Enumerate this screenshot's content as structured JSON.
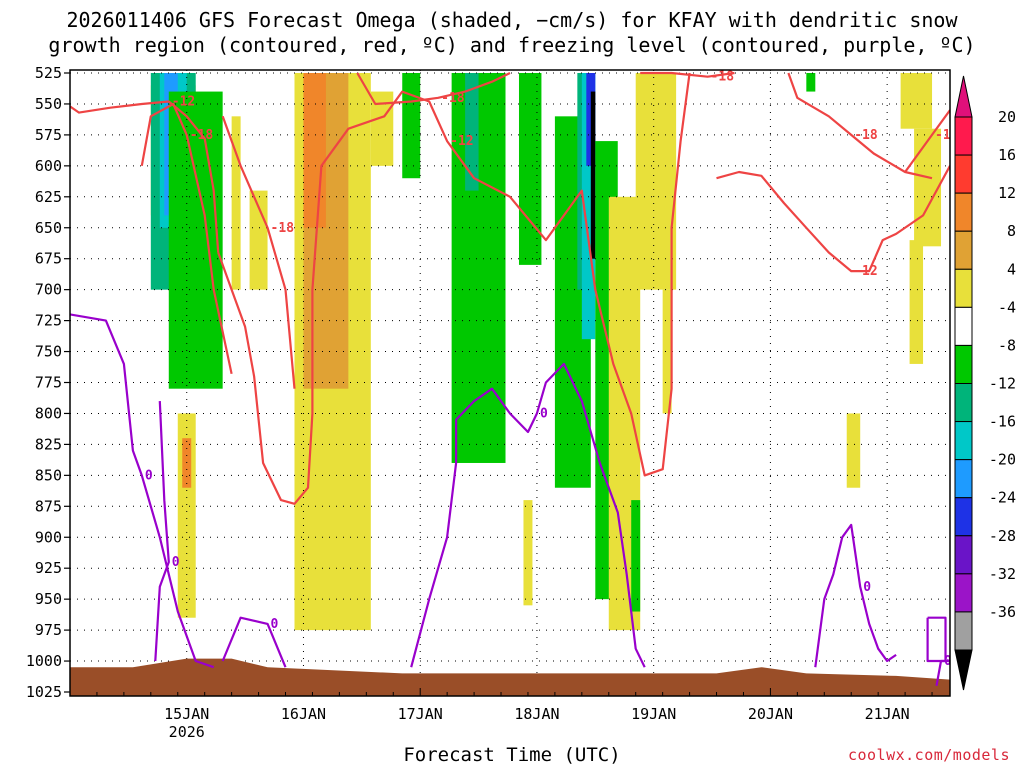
{
  "chart_data": {
    "type": "heatmap",
    "title_line1": "2026011406 GFS Forecast Omega (shaded, −cm/s) for KFAY with dendritic snow",
    "title_line2": "growth region (contoured, red, ºC) and freezing level (contoured, purple, ºC)",
    "xlabel": "Forecast Time (UTC)",
    "credit": "coolwx.com/models",
    "x_range_hours": [
      -14,
      182
    ],
    "y_levels": [
      525,
      550,
      575,
      600,
      625,
      650,
      675,
      700,
      725,
      750,
      775,
      800,
      825,
      850,
      875,
      900,
      925,
      950,
      975,
      1000,
      1025
    ],
    "y_tick_labels": [
      "525",
      "550",
      "575",
      "600",
      "625",
      "650",
      "675",
      "700",
      "725",
      "750",
      "775",
      "800",
      "825",
      "850",
      "875",
      "900",
      "925",
      "950",
      "975",
      "1000",
      "1025"
    ],
    "x_ticks": [
      {
        "hours": 12,
        "label": "15JAN",
        "sub": "2026"
      },
      {
        "hours": 38,
        "label": "16JAN"
      },
      {
        "hours": 64,
        "label": "17JAN"
      },
      {
        "hours": 90,
        "label": "18JAN"
      },
      {
        "hours": 116,
        "label": "19JAN"
      },
      {
        "hours": 142,
        "label": "20JAN"
      },
      {
        "hours": 168,
        "label": "21JAN"
      }
    ],
    "colorbar": {
      "labels": [
        "20",
        "16",
        "12",
        "8",
        "4",
        "-4",
        "-8",
        "-12",
        "-16",
        "-20",
        "-24",
        "-28",
        "-32",
        "-36"
      ],
      "colors": [
        "#ff1a4d",
        "#ff3b2f",
        "#f0862a",
        "#e0a234",
        "#e8e03a",
        "#ffffff",
        "#00c800",
        "#00b47a",
        "#00c8c8",
        "#1e9bff",
        "#1e32e6",
        "#6a14c8",
        "#9b14c8",
        "#a0a0a0"
      ],
      "top_arrow": "#e0107a",
      "bottom_arrow": "#000000"
    },
    "omega_shading": [
      {
        "color": "#e8e03a",
        "x": [
          4,
          14
        ],
        "p": [
          535,
          640
        ]
      },
      {
        "color": "#00b47a",
        "x": [
          4,
          14
        ],
        "p": [
          525,
          700
        ]
      },
      {
        "color": "#00c8c8",
        "x": [
          6,
          12
        ],
        "p": [
          525,
          650
        ]
      },
      {
        "color": "#1e9bff",
        "x": [
          7,
          10
        ],
        "p": [
          525,
          640
        ]
      },
      {
        "color": "#00c800",
        "x": [
          8,
          20
        ],
        "p": [
          540,
          780
        ]
      },
      {
        "color": "#e8e03a",
        "x": [
          10,
          14
        ],
        "p": [
          800,
          965
        ]
      },
      {
        "color": "#f0862a",
        "x": [
          11,
          13
        ],
        "p": [
          820,
          860
        ]
      },
      {
        "color": "#00c800",
        "x": [
          14,
          17
        ],
        "p": [
          550,
          740
        ]
      },
      {
        "color": "#e8e03a",
        "x": [
          22,
          24
        ],
        "p": [
          560,
          700
        ]
      },
      {
        "color": "#e8e03a",
        "x": [
          26,
          30
        ],
        "p": [
          620,
          700
        ]
      },
      {
        "color": "#e8e03a",
        "x": [
          36,
          53
        ],
        "p": [
          525,
          975
        ]
      },
      {
        "color": "#e0a234",
        "x": [
          38,
          48
        ],
        "p": [
          525,
          780
        ]
      },
      {
        "color": "#f0862a",
        "x": [
          38,
          43
        ],
        "p": [
          525,
          650
        ]
      },
      {
        "color": "#e8e03a",
        "x": [
          53,
          58
        ],
        "p": [
          540,
          600
        ]
      },
      {
        "color": "#00c800",
        "x": [
          60,
          64
        ],
        "p": [
          525,
          610
        ]
      },
      {
        "color": "#00c800",
        "x": [
          71,
          83
        ],
        "p": [
          525,
          840
        ]
      },
      {
        "color": "#00b47a",
        "x": [
          74,
          77
        ],
        "p": [
          525,
          620
        ]
      },
      {
        "color": "#00c800",
        "x": [
          86,
          91
        ],
        "p": [
          525,
          680
        ]
      },
      {
        "color": "#e8e03a",
        "x": [
          87,
          89
        ],
        "p": [
          870,
          955
        ]
      },
      {
        "color": "#00c800",
        "x": [
          94,
          102
        ],
        "p": [
          560,
          860
        ]
      },
      {
        "color": "#00b47a",
        "x": [
          99,
          101
        ],
        "p": [
          525,
          700
        ]
      },
      {
        "color": "#00c8c8",
        "x": [
          100,
          103
        ],
        "p": [
          525,
          740
        ]
      },
      {
        "color": "#1e32e6",
        "x": [
          101,
          103
        ],
        "p": [
          525,
          600
        ]
      },
      {
        "color": "#000000",
        "x": [
          102,
          103
        ],
        "p": [
          540,
          675
        ]
      },
      {
        "color": "#00c800",
        "x": [
          103,
          108
        ],
        "p": [
          580,
          950
        ]
      },
      {
        "color": "#e8e03a",
        "x": [
          106,
          113
        ],
        "p": [
          625,
          975
        ]
      },
      {
        "color": "#00c800",
        "x": [
          111,
          113
        ],
        "p": [
          870,
          960
        ]
      },
      {
        "color": "#e8e03a",
        "x": [
          112,
          121
        ],
        "p": [
          525,
          700
        ]
      },
      {
        "color": "#e8e03a",
        "x": [
          118,
          120
        ],
        "p": [
          700,
          800
        ]
      },
      {
        "color": "#00c800",
        "x": [
          150,
          152
        ],
        "p": [
          525,
          540
        ]
      },
      {
        "color": "#e8e03a",
        "x": [
          159,
          162
        ],
        "p": [
          800,
          860
        ]
      },
      {
        "color": "#e8e03a",
        "x": [
          171,
          178
        ],
        "p": [
          525,
          570
        ]
      },
      {
        "color": "#e8e03a",
        "x": [
          174,
          180
        ],
        "p": [
          570,
          665
        ]
      },
      {
        "color": "#e8e03a",
        "x": [
          173,
          176
        ],
        "p": [
          660,
          760
        ]
      }
    ],
    "dgz_contours": [
      {
        "label": "-12",
        "points": [
          [
            -14,
            552
          ],
          [
            -12,
            557
          ],
          [
            -5,
            553
          ],
          [
            2,
            550
          ],
          [
            8,
            548
          ],
          [
            12,
            560
          ],
          [
            16,
            578
          ],
          [
            18,
            620
          ],
          [
            19,
            670
          ]
        ]
      },
      {
        "label": "-12",
        "points": [
          [
            19,
            670
          ],
          [
            22,
            700
          ],
          [
            25,
            730
          ],
          [
            27,
            770
          ],
          [
            29,
            840
          ],
          [
            33,
            870
          ],
          [
            36,
            873
          ],
          [
            39,
            860
          ],
          [
            40,
            800
          ],
          [
            40,
            700
          ],
          [
            42,
            600
          ],
          [
            48,
            570
          ],
          [
            56,
            560
          ],
          [
            60,
            540
          ],
          [
            66,
            548
          ],
          [
            70,
            580
          ],
          [
            74,
            600
          ],
          [
            76,
            610
          ],
          [
            84,
            625
          ],
          [
            92,
            660
          ],
          [
            96,
            640
          ],
          [
            100,
            620
          ],
          [
            103,
            700
          ],
          [
            107,
            760
          ],
          [
            111,
            800
          ],
          [
            114,
            850
          ],
          [
            118,
            845
          ],
          [
            120,
            780
          ],
          [
            120,
            650
          ],
          [
            122,
            580
          ],
          [
            124,
            525
          ]
        ]
      },
      {
        "label": "-12",
        "points": [
          [
            130,
            610
          ],
          [
            135,
            605
          ],
          [
            140,
            608
          ],
          [
            145,
            630
          ],
          [
            150,
            650
          ],
          [
            155,
            670
          ],
          [
            160,
            685
          ],
          [
            164,
            685
          ],
          [
            167,
            660
          ],
          [
            170,
            655
          ],
          [
            176,
            640
          ],
          [
            182,
            600
          ]
        ]
      },
      {
        "label": "-18",
        "points": [
          [
            22,
            768
          ],
          [
            18,
            700
          ],
          [
            16,
            640
          ],
          [
            12,
            575
          ],
          [
            9,
            550
          ],
          [
            4,
            560
          ],
          [
            2,
            600
          ]
        ]
      },
      {
        "label": "-18",
        "points": [
          [
            36,
            780
          ],
          [
            34,
            700
          ],
          [
            30,
            650
          ],
          [
            24,
            600
          ],
          [
            20,
            560
          ]
        ]
      },
      {
        "label": "-18",
        "points": [
          [
            50,
            525
          ],
          [
            54,
            550
          ],
          [
            62,
            548
          ],
          [
            68,
            545
          ],
          [
            74,
            540
          ],
          [
            80,
            532
          ],
          [
            84,
            525
          ]
        ]
      },
      {
        "label": "-18",
        "points": [
          [
            113,
            525
          ],
          [
            120,
            525
          ],
          [
            128,
            528
          ],
          [
            134,
            525
          ]
        ]
      },
      {
        "label": "-18",
        "points": [
          [
            146,
            525
          ],
          [
            148,
            545
          ],
          [
            155,
            560
          ],
          [
            160,
            575
          ],
          [
            165,
            590
          ],
          [
            172,
            605
          ],
          [
            178,
            610
          ]
        ]
      },
      {
        "label": "-18",
        "points": [
          [
            172,
            605
          ],
          [
            178,
            575
          ],
          [
            182,
            555
          ]
        ]
      }
    ],
    "freezing_contours": [
      {
        "label": "0",
        "points": [
          [
            -14,
            720
          ],
          [
            -6,
            725
          ],
          [
            -2,
            760
          ],
          [
            0,
            830
          ],
          [
            2,
            850
          ],
          [
            6,
            900
          ],
          [
            10,
            960
          ],
          [
            14,
            1000
          ],
          [
            18,
            1005
          ]
        ]
      },
      {
        "label": "0",
        "points": [
          [
            6,
            790
          ],
          [
            7,
            870
          ],
          [
            8,
            920
          ],
          [
            6,
            940
          ],
          [
            5,
            1000
          ]
        ]
      },
      {
        "label": "0",
        "points": [
          [
            20,
            1000
          ],
          [
            24,
            965
          ],
          [
            30,
            970
          ],
          [
            34,
            1005
          ]
        ]
      },
      {
        "label": "0",
        "points": [
          [
            62,
            1005
          ],
          [
            66,
            950
          ],
          [
            70,
            900
          ],
          [
            72,
            840
          ],
          [
            72,
            805
          ],
          [
            76,
            790
          ],
          [
            80,
            780
          ],
          [
            84,
            800
          ],
          [
            88,
            815
          ],
          [
            90,
            800
          ],
          [
            92,
            775
          ],
          [
            96,
            760
          ],
          [
            100,
            790
          ],
          [
            104,
            840
          ],
          [
            108,
            880
          ],
          [
            110,
            930
          ],
          [
            112,
            990
          ],
          [
            114,
            1005
          ]
        ]
      },
      {
        "label": "0",
        "points": [
          [
            152,
            1005
          ],
          [
            154,
            950
          ],
          [
            156,
            930
          ],
          [
            158,
            900
          ],
          [
            160,
            890
          ],
          [
            162,
            940
          ],
          [
            164,
            970
          ],
          [
            166,
            990
          ],
          [
            168,
            1000
          ],
          [
            170,
            995
          ]
        ]
      },
      {
        "label": "0",
        "points": [
          [
            177,
            965
          ],
          [
            181,
            965
          ],
          [
            181,
            1000
          ],
          [
            177,
            1000
          ],
          [
            177,
            965
          ]
        ]
      },
      {
        "label": "0",
        "points": [
          [
            179,
            1020
          ],
          [
            180,
            1000
          ],
          [
            182,
            1000
          ]
        ]
      }
    ]
  }
}
